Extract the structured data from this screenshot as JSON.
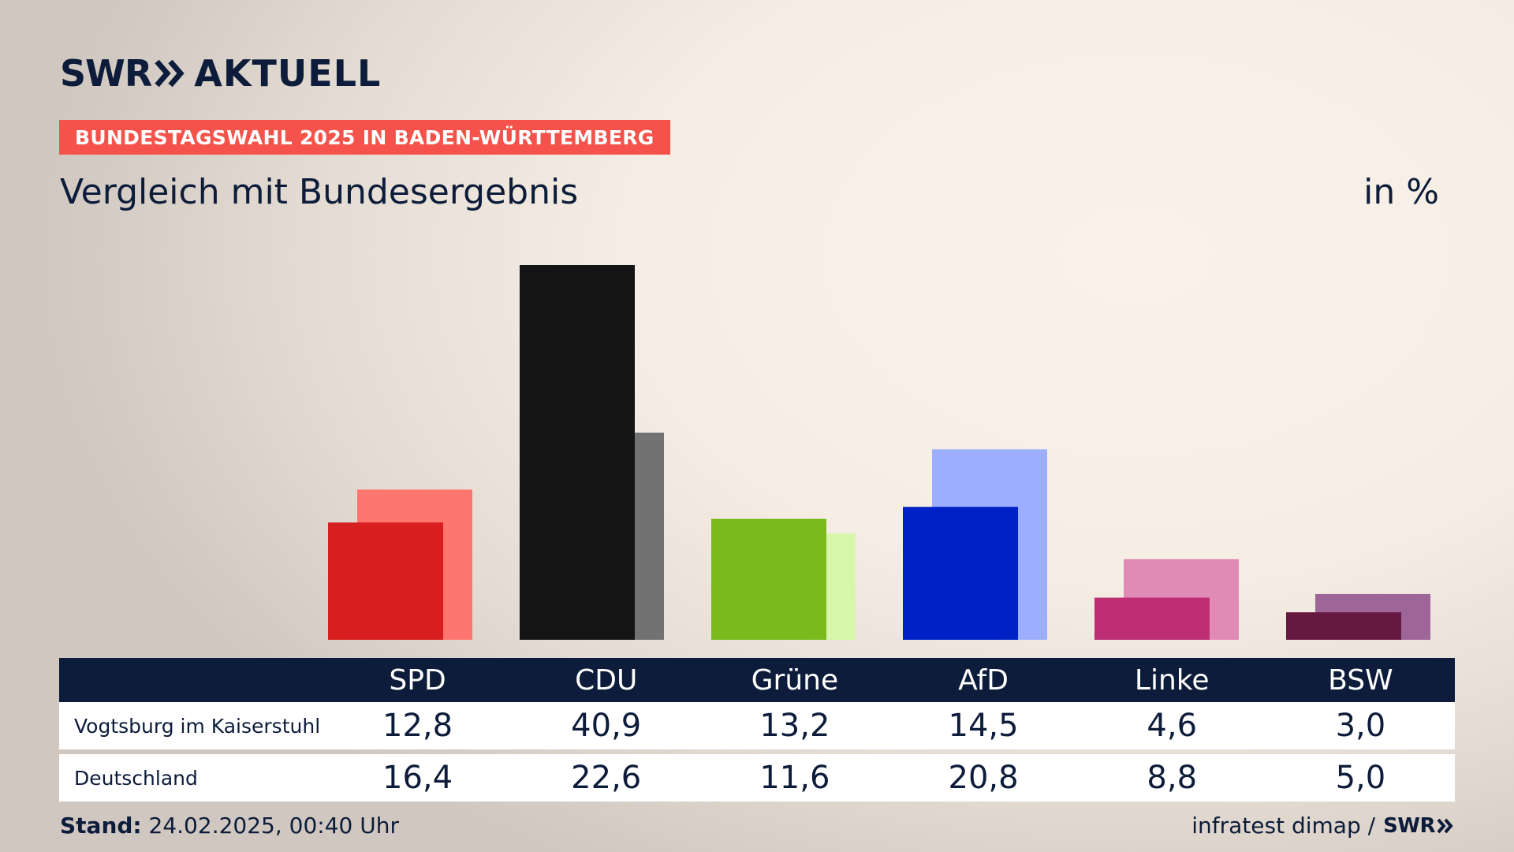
{
  "header": {
    "brand": "SWR",
    "program": "AKTUELL",
    "tag": "BUNDESTAGSWAHL 2025 IN BADEN-WÜRTTEMBERG",
    "subtitle": "Vergleich mit Bundesergebnis",
    "unit": "in %"
  },
  "chart_data": {
    "type": "bar",
    "title": "Vergleich mit Bundesergebnis",
    "ylabel": "in %",
    "categories": [
      "SPD",
      "CDU",
      "Grüne",
      "AfD",
      "Linke",
      "BSW"
    ],
    "series": [
      {
        "name": "Vogtsburg im Kaiserstuhl",
        "values": [
          12.8,
          40.9,
          13.2,
          14.5,
          4.6,
          3.0
        ],
        "colors": [
          "#d71f1f",
          "#141414",
          "#7aba1c",
          "#0021c6",
          "#bd2e72",
          "#651941"
        ]
      },
      {
        "name": "Deutschland",
        "values": [
          16.4,
          22.6,
          11.6,
          20.8,
          8.8,
          5.0
        ],
        "colors": [
          "#ff766f",
          "#727272",
          "#d6f7a9",
          "#9daeff",
          "#e08ab6",
          "#9d6598"
        ]
      }
    ],
    "ylim": [
      0,
      40.9
    ]
  },
  "table": {
    "headers": [
      "SPD",
      "CDU",
      "Grüne",
      "AfD",
      "Linke",
      "BSW"
    ],
    "rows": [
      {
        "label": "Vogtsburg im Kaiserstuhl",
        "values": [
          "12,8",
          "40,9",
          "13,2",
          "14,5",
          "4,6",
          "3,0"
        ]
      },
      {
        "label": "Deutschland",
        "values": [
          "16,4",
          "22,6",
          "11,6",
          "20,8",
          "8,8",
          "5,0"
        ]
      }
    ]
  },
  "footer": {
    "stand_label": "Stand:",
    "stand_value": "24.02.2025, 00:40 Uhr",
    "source": "infratest dimap /",
    "brand": "SWR"
  },
  "colors": {
    "navy": "#0c1c3a",
    "tag": "#f4524a"
  }
}
